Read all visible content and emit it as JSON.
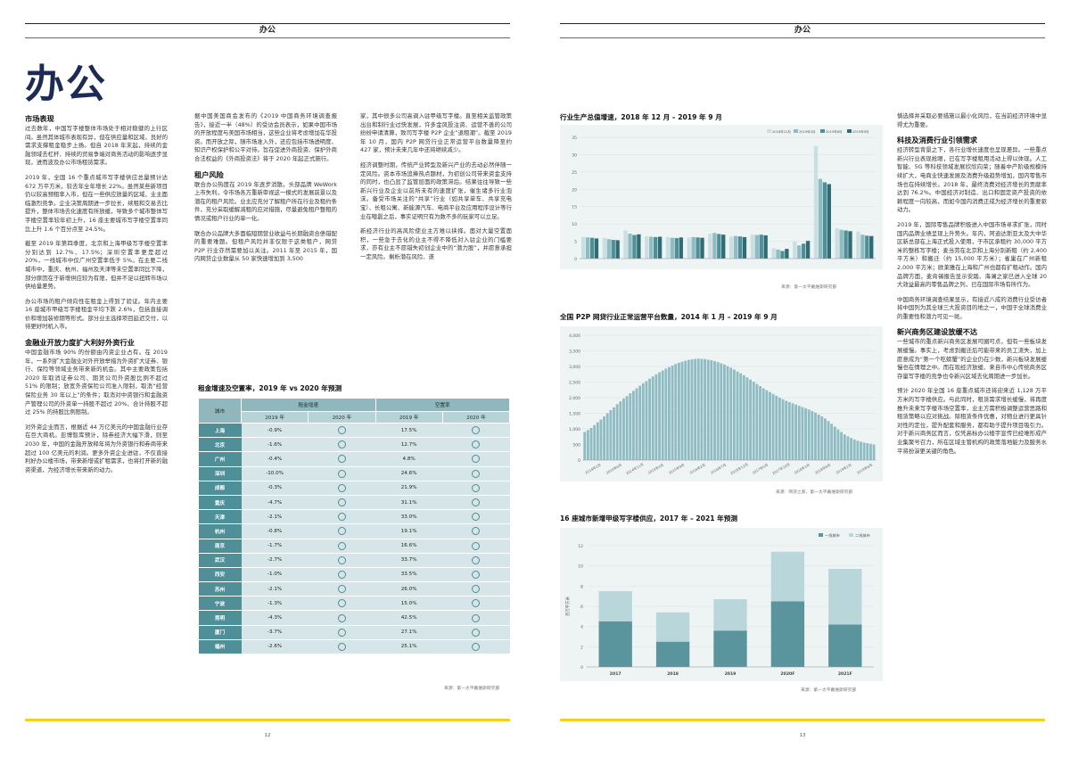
{
  "header": {
    "left_label": "办公",
    "right_label": "办公"
  },
  "page_title": "办公",
  "page_numbers": {
    "left": "12",
    "right": "13"
  },
  "left_col1": [
    {
      "heading": "市场表现",
      "text": "过去数年，中国写字楼整体市场处于相对稳健的上行区间。虽然其体城市表现有异，但在供应量和区域，良好的需求支撑租金稳步上扬。但自 2018 年末起，持续的金融领域去杠杆、持续的贸易争端对商务活动的影响逐步显现，进而波及办公市场租赁需求。"
    },
    {
      "heading": "",
      "text": "2019 年，全国 16 个重点城市写字楼供应总量预计达 672 万平方米，较去年全年增长 22%。虽然某些新项目仍以较高预租率入市，但在一些供应放量的区域，业主面临激烈竞争。企业决策周期进一步拉长，续租和交易去比提升，整体市场去化速度有所放缓，导致多个城市整体写字楼空置率较年初上升，16 座主要城市写字楼空置率同比上升 1.6 个百分点至 24.5%。"
    },
    {
      "heading": "",
      "text": "截至 2019 年第四季度，北京和上海甲级写字楼空置率分别达到 12.7%、17.5%；深圳空置率更是超过 20%，一线城市中仅广州空置率低于 5%。在主要二线城市中，重庆、杭州、福州及天津等未空置率同比下降，部分原因在于新增供应较为有限，但并不足以扭转市场以供给量差势。"
    },
    {
      "heading": "",
      "text": "办公市场的租户倾向性在租金上得到了验证。年内主要 16 座城市甲级写字楼租金平均下跌 2.6%，包括直接调价和增加装修期等形式。部分业主选择项目延迟交付，以待更好时机入市。"
    },
    {
      "heading": "金融业开放力度扩大利好外资行业",
      "text": "中国金融市场 90% 的份额由内资企业占有。在 2019 年，一系列扩大金融业对外开放举措为外资扩大证券、银行、保险等领域业务带来新的机会。其中主要政策包括 2020 年取消证券公司、期货公司外资股比例不超过 51% 的限制；放宽外资保险公司准入限制，取消“经营保险业务 30 年以上”的条件；取消对中资银行和金融资产管理公司的外资单一持股不超过 20%、合计持股不超过 25% 的持股比例限制。"
    },
    {
      "heading": "",
      "text": "对外资企业而言，根据近 44 万亿美元的中国金融行业存在巨大商机。彭博智库预计，除券经济大幅下滑，则至 2030 年，中国的金融开放释年将为外资银行和券商带来超过 100 亿美元的利润。更多外资企业进驻，不仅直接利好办公楼市场，带来新增或扩租需求，也将打开新的融资渠道，为经济增长带来新的动力。"
    }
  ],
  "left_col2": [
    {
      "heading": "",
      "text": "据中国美国商会发布的《2019 中国商务环境调查报告》，接近一半（48%）的受访会员表示，如果中国市场的开放程度与美国市场相当，这些企业将考虑增加在华投资。而开放之际，随市场准入外，还应包括市场透明度、知识产权保护和公平对待。旨在促进外商投资、保护外商合法权益的《外商投资法》将于 2020 年起正式施行。"
    },
    {
      "heading": "租户风险",
      "text": "联合办公热度在 2019 年逐步消散。头部品牌 WeWork 上市失利，令市场各方重新审视这一模式的发展前景以及潜在的租户风险。业主应充分了解租户所在行业及租约条件，充分采取缓解减租的应对措施，尽量避免租户整租的情况或租户行业的单一化。"
    },
    {
      "heading": "",
      "text": "联合办公品牌大多面临短期营业收益与长期融资合债错配的重要难题。但租户风险并非仅限于这类租户，网贷 P2P 行业亦然需要加以关注。2011 年至 2015 年，国内网贷企业数量从 50 家快速增加到 3,500"
    }
  ],
  "left_col3": [
    {
      "heading": "",
      "text": "家，其中很多公司高调入驻甲级写字楼。直至相关监管政策出台和制行业过快发展，许多金风投注资、运营不善的公司纷纷申请清算，致司写字楼 P2P 企业“退租潮”。截至 2019 年 10 月，国内 P2P 网贷行业正常运营平台数量降至约 427 家，预计未来几年中还将继续减少。"
    },
    {
      "heading": "",
      "text": "经济调整时期，传统产业转型及新兴产业的去动必然伴随一定风险。资本市场追捧热点题材，为初创公司带来资金支持的同时，也凸显了监管层面的政策滞后。结果往往导致一些新兴行业及企业以前所未有的速度扩张，催生诸多行业泡沫。备受市场关注的“共享”行业（如共享单车、共享充电宝）、长租公寓、新能源汽车、电商平台及应用程序设计等行业在喧嚣之后，事实证明只有为数不多的玩家可以立足。"
    },
    {
      "heading": "",
      "text": "新经济行业的高风险使业主方难以挟择。面对大量空置面积，一些急于去化的业主不得不降低对入驻企业的门槛要求，亦有业主不愿错失初创企业中的“潜力股”，并愿意承担一定风险。剩析潜在风险、遂"
    }
  ],
  "rent_table": {
    "title": "租金增速及空置率，2019 年 vs 2020 年预测",
    "col_city": "城市",
    "col_rent": "租金增速",
    "col_vacancy": "空置率",
    "sub_2019": "2019 年",
    "sub_2020": "2020 年",
    "rows": [
      {
        "city": "上海",
        "rent2019": "-0.9%",
        "vac2019": "17.5%"
      },
      {
        "city": "北京",
        "rent2019": "-1.6%",
        "vac2019": "12.7%"
      },
      {
        "city": "广州",
        "rent2019": "-0.4%",
        "vac2019": "4.8%"
      },
      {
        "city": "深圳",
        "rent2019": "-10.0%",
        "vac2019": "24.6%"
      },
      {
        "city": "成都",
        "rent2019": "-0.3%",
        "vac2019": "21.9%"
      },
      {
        "city": "重庆",
        "rent2019": "-4.7%",
        "vac2019": "31.1%"
      },
      {
        "city": "天津",
        "rent2019": "-2.1%",
        "vac2019": "33.0%"
      },
      {
        "city": "杭州",
        "rent2019": "-0.8%",
        "vac2019": "19.1%"
      },
      {
        "city": "南京",
        "rent2019": "-1.7%",
        "vac2019": "16.6%"
      },
      {
        "city": "武汉",
        "rent2019": "-2.7%",
        "vac2019": "33.7%"
      },
      {
        "city": "西安",
        "rent2019": "-1.0%",
        "vac2019": "33.5%"
      },
      {
        "city": "苏州",
        "rent2019": "-2.1%",
        "vac2019": "26.0%"
      },
      {
        "city": "宁波",
        "rent2019": "-1.3%",
        "vac2019": "15.0%"
      },
      {
        "city": "昆明",
        "rent2019": "-4.3%",
        "vac2019": "42.5%"
      },
      {
        "city": "厦门",
        "rent2019": "-3.7%",
        "vac2019": "27.1%"
      },
      {
        "city": "福州",
        "rent2019": "-2.6%",
        "vac2019": "25.1%"
      }
    ],
    "source": "来源：第一太平戴维斯研究部"
  },
  "chart1": {
    "title": "行业生产总值增速，2018 年 12 月 – 2019 年 9 月",
    "source": "来源：第一太平戴维斯研究部"
  },
  "chart2": {
    "title": "全国 P2P 网贷行业正常运营平台数量，2014 年 1 月 – 2019 年 9 月",
    "source": "来源：网贷之家，第一太平戴维斯研究部"
  },
  "chart3": {
    "title": "16 座城市新增甲级写字楼供应，2017 年 – 2021 年预测",
    "source": "来源：第一太平戴维斯研究部"
  },
  "chart_data": [
    {
      "type": "bar",
      "title": "行业生产总值增速，2018 年 12 月 – 2019 年 9 月",
      "categories": [
        "1",
        "2",
        "3",
        "4",
        "5",
        "6",
        "7",
        "8",
        "9",
        "10",
        "11",
        "12",
        "13",
        "14"
      ],
      "series": [
        {
          "name": "2018年12月",
          "values": [
            6.3,
            6.0,
            8.1,
            6.4,
            6.2,
            6.1,
            7.2,
            6.4,
            6.9,
            3.0,
            4.9,
            32.5,
            8.8,
            7.8
          ]
        },
        {
          "name": "2019年3月",
          "values": [
            6.1,
            5.6,
            7.2,
            6.3,
            6.0,
            6.2,
            7.4,
            6.5,
            6.8,
            2.6,
            3.8,
            23.0,
            8.3,
            6.9
          ]
        },
        {
          "name": "2019年6月",
          "values": [
            6.0,
            5.4,
            6.8,
            6.2,
            5.9,
            6.1,
            7.1,
            6.4,
            6.9,
            2.2,
            4.3,
            22.0,
            8.1,
            6.6
          ]
        },
        {
          "name": "2019年9月",
          "values": [
            5.8,
            5.3,
            7.0,
            6.3,
            6.1,
            6.0,
            6.9,
            6.2,
            6.7,
            2.8,
            5.1,
            21.5,
            7.9,
            6.5
          ]
        }
      ],
      "ylim": [
        0,
        35
      ],
      "yticks": [
        "0",
        "5",
        "10",
        "15",
        "20",
        "25",
        "30",
        "35"
      ],
      "colors": [
        "#c9dfe2",
        "#8ebcc2",
        "#4f8f98",
        "#2f6c74"
      ]
    },
    {
      "type": "bar",
      "title": "全国 P2P 网贷行业正常运营平台数量，2014 年 1 月 – 2019 年 9 月",
      "x_labels": [
        "2014年1月",
        "2014年6月",
        "2014年11月",
        "2015年4月",
        "2015年9月",
        "2016年2月",
        "2016年7月",
        "2016年12月",
        "2017年5月",
        "2017年10月",
        "2018年3月",
        "2018年8月",
        "2019年1月",
        "2019年6月"
      ],
      "values": [
        900,
        960,
        1030,
        1120,
        1210,
        1300,
        1400,
        1500,
        1600,
        1690,
        1790,
        1880,
        1970,
        2050,
        2140,
        2220,
        2300,
        2380,
        2460,
        2530,
        2610,
        2680,
        2750,
        2810,
        2870,
        2930,
        2980,
        3030,
        3080,
        3120,
        3150,
        3180,
        3210,
        3230,
        3240,
        3250,
        3245,
        3235,
        3220,
        3200,
        3170,
        3140,
        3100,
        3060,
        3010,
        2960,
        2900,
        2840,
        2780,
        2720,
        2650,
        2580,
        2510,
        2440,
        2370,
        2300,
        2240,
        2180,
        2120,
        2060,
        2000,
        1950,
        1900,
        1860,
        1820,
        1780,
        1740,
        1700,
        1660,
        1620,
        1570,
        1520,
        1460,
        1400,
        1330,
        1250,
        1160,
        1070,
        980,
        900,
        820,
        760,
        710,
        660,
        620,
        590,
        560,
        540,
        520,
        500
      ],
      "ylim": [
        0,
        4000
      ],
      "yticks": [
        "0",
        "500",
        "1,000",
        "1,500",
        "2,000",
        "2,500",
        "3,000",
        "3,500",
        "4,000"
      ],
      "colors": [
        "#8ebcc2"
      ]
    },
    {
      "type": "bar",
      "title": "16 座城市新增甲级写字楼供应，2017 年 – 2021 年预测",
      "categories": [
        "2017",
        "2018",
        "2019",
        "2020F",
        "2021F"
      ],
      "series": [
        {
          "name": "一线城市",
          "values": [
            4.5,
            2.5,
            3.6,
            6.5,
            4.2
          ]
        },
        {
          "name": "二线城市",
          "values": [
            3.0,
            2.9,
            3.1,
            4.9,
            5.5
          ]
        }
      ],
      "ylabel": "百万平方米",
      "ylim": [
        0,
        12
      ],
      "yticks": [
        "0",
        "2",
        "4",
        "6",
        "8",
        "10",
        "12"
      ],
      "colors": [
        "#5a959e",
        "#b9d6da"
      ]
    }
  ],
  "right_col": [
    {
      "heading": "",
      "text": "慎选择并采取必要措施以最小化风险，在当前经济环境中显得尤为重要。"
    },
    {
      "heading": "科技及消费行业引领需求",
      "text": "经济转型背景之下，各行业增长速度也呈现差异。一些重点新兴行业表现抢眼，已在写字楼租用活动上得以体现。人工智能、5G 等科技领域发展欣欣向荣；随着中产阶级规模持续扩大，电商业快速发展及消费升级趋势增加，国内零售市场也在持续增长。2018 年，最终消费对经济增长的贡献率达到 76.2%。中国经济对制造、出口和固定资产投资的依赖程度一向较高，而如今国内消费正成为经济增长的重要驱动力。"
    },
    {
      "heading": "",
      "text": "2019 年，国际零售品牌积极进入中国市场寻求扩张，同时国内品牌业绩呈现上升势头。年内，阿迪达斯亚太及大中华区新总部在上海正式投入使用，于市区承租约 30,000 平方米的整栋写字楼；麦当劳在北京和上海分别新租（约 2,400 平方米）和搬迁（约 15,000 平方米）；雀巢在广州新租 2,000 平方米；欧莱雅在上海和广州也都有扩租动作。国内品牌方面，麦肯锡报告显示安踏、海澜之家已进入全球 20 大效益最高的零售品牌之列，已在国际市场有所作为。"
    },
    {
      "heading": "",
      "text": "中国商务环境调查结果显示，有接近八成的消费行业受访者将中国列为其全球三大投资目的地之一，中国于全球消费业的重要性和潜力可见一斑。"
    },
    {
      "heading": "新兴商务区建设放缓不达",
      "text": "一些城市的重点新兴商务区发展可圈可点，但有一些板块发展缓慢。事实上，考虑到搬迁后可能带来的员工流失，加上愿意成为“第一个吃螃蟹”的企业仍在少数，新兴板块发展缓慢也在情理之中。而在现经济放缓、来自市中心传统商务区存量写字楼的竞争也令新兴区域去化周期进一步加长。"
    },
    {
      "heading": "",
      "text": "预计 2020 年全国 16 座重点城市还将迎来近 1,128 万平方米的写字楼供应。与此同时，租赁需求增长缓慢，将再度推升未来写字楼市场空置率，业主方需积极调整运营思路和租赁策略以应对挑战。除租赁条件优惠，对物业进行更具针对性的定位，提升配套和服务，都有助于提升项目吸引力。对于新兴商务区而言，仅凭高标办公楼宇宣传已经难形成产业集聚号召力，所在区域主管机构的政策落地能力及服务水平将扮演更关键的角色。"
    }
  ]
}
